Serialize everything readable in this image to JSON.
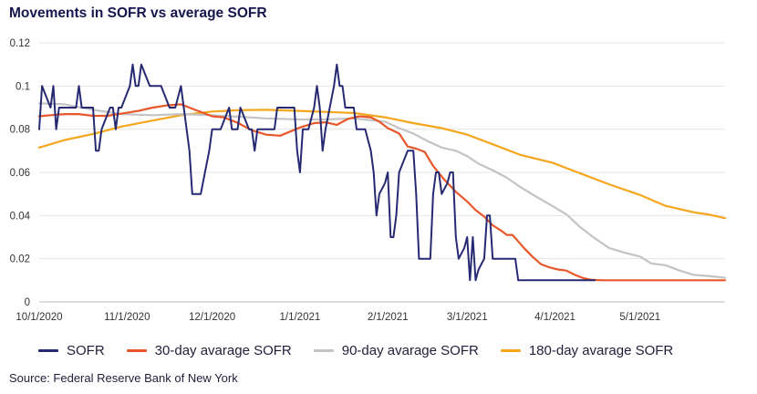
{
  "title": "Movements in SOFR vs average SOFR",
  "source": "Source: Federal Reserve Bank of New York",
  "chart_data": {
    "type": "line",
    "title": "Movements in SOFR vs average SOFR",
    "xlabel": "",
    "ylabel": "",
    "x_range": [
      "2020-10-01",
      "2021-05-31"
    ],
    "ylim": [
      0,
      0.12
    ],
    "y_ticks": [
      0,
      0.02,
      0.04,
      0.06,
      0.08,
      0.1,
      0.12
    ],
    "y_tick_labels": [
      "0",
      "0.02",
      "0.04",
      "0.06",
      "0.08",
      "0.1",
      "0.12"
    ],
    "x_ticks": [
      "2020-10-01",
      "2020-11-01",
      "2020-12-01",
      "2021-01-01",
      "2021-02-01",
      "2021-03-01",
      "2021-04-01",
      "2021-05-01"
    ],
    "x_tick_labels": [
      "10/1/2020",
      "11/1/2020",
      "12/1/2020",
      "1/1/2021",
      "2/1/2021",
      "3/1/2021",
      "4/1/2021",
      "5/1/2021"
    ],
    "grid": "horizontal",
    "legend_position": "bottom",
    "series": [
      {
        "name": "SOFR",
        "color": "#262a72",
        "points": [
          [
            "2020-10-01",
            0.08
          ],
          [
            "2020-10-02",
            0.1
          ],
          [
            "2020-10-05",
            0.09
          ],
          [
            "2020-10-06",
            0.1
          ],
          [
            "2020-10-07",
            0.08
          ],
          [
            "2020-10-08",
            0.09
          ],
          [
            "2020-10-14",
            0.09
          ],
          [
            "2020-10-15",
            0.1
          ],
          [
            "2020-10-16",
            0.09
          ],
          [
            "2020-10-20",
            0.09
          ],
          [
            "2020-10-21",
            0.07
          ],
          [
            "2020-10-22",
            0.07
          ],
          [
            "2020-10-23",
            0.08
          ],
          [
            "2020-10-26",
            0.09
          ],
          [
            "2020-10-27",
            0.09
          ],
          [
            "2020-10-28",
            0.08
          ],
          [
            "2020-10-29",
            0.09
          ],
          [
            "2020-10-30",
            0.09
          ],
          [
            "2020-11-02",
            0.1
          ],
          [
            "2020-11-03",
            0.11
          ],
          [
            "2020-11-04",
            0.1
          ],
          [
            "2020-11-05",
            0.1
          ],
          [
            "2020-11-06",
            0.11
          ],
          [
            "2020-11-09",
            0.1
          ],
          [
            "2020-11-13",
            0.1
          ],
          [
            "2020-11-16",
            0.09
          ],
          [
            "2020-11-18",
            0.09
          ],
          [
            "2020-11-20",
            0.1
          ],
          [
            "2020-11-23",
            0.07
          ],
          [
            "2020-11-24",
            0.05
          ],
          [
            "2020-11-27",
            0.05
          ],
          [
            "2020-11-30",
            0.07
          ],
          [
            "2020-12-01",
            0.08
          ],
          [
            "2020-12-04",
            0.08
          ],
          [
            "2020-12-07",
            0.09
          ],
          [
            "2020-12-08",
            0.08
          ],
          [
            "2020-12-10",
            0.08
          ],
          [
            "2020-12-11",
            0.09
          ],
          [
            "2020-12-14",
            0.08
          ],
          [
            "2020-12-15",
            0.08
          ],
          [
            "2020-12-16",
            0.07
          ],
          [
            "2020-12-17",
            0.08
          ],
          [
            "2020-12-23",
            0.08
          ],
          [
            "2020-12-24",
            0.09
          ],
          [
            "2020-12-30",
            0.09
          ],
          [
            "2020-12-31",
            0.07
          ],
          [
            "2021-01-01",
            0.06
          ],
          [
            "2021-01-02",
            0.08
          ],
          [
            "2021-01-04",
            0.08
          ],
          [
            "2021-01-06",
            0.09
          ],
          [
            "2021-01-07",
            0.1
          ],
          [
            "2021-01-08",
            0.09
          ],
          [
            "2021-01-09",
            0.07
          ],
          [
            "2021-01-10",
            0.08
          ],
          [
            "2021-01-13",
            0.1
          ],
          [
            "2021-01-14",
            0.11
          ],
          [
            "2021-01-15",
            0.1
          ],
          [
            "2021-01-16",
            0.1
          ],
          [
            "2021-01-17",
            0.09
          ],
          [
            "2021-01-19",
            0.09
          ],
          [
            "2021-01-20",
            0.09
          ],
          [
            "2021-01-21",
            0.08
          ],
          [
            "2021-01-24",
            0.08
          ],
          [
            "2021-01-26",
            0.07
          ],
          [
            "2021-01-27",
            0.06
          ],
          [
            "2021-01-28",
            0.04
          ],
          [
            "2021-01-29",
            0.05
          ],
          [
            "2021-01-31",
            0.055
          ],
          [
            "2021-02-01",
            0.06
          ],
          [
            "2021-02-02",
            0.03
          ],
          [
            "2021-02-03",
            0.03
          ],
          [
            "2021-02-04",
            0.04
          ],
          [
            "2021-02-05",
            0.06
          ],
          [
            "2021-02-08",
            0.07
          ],
          [
            "2021-02-10",
            0.07
          ],
          [
            "2021-02-11",
            0.05
          ],
          [
            "2021-02-12",
            0.02
          ],
          [
            "2021-02-16",
            0.02
          ],
          [
            "2021-02-17",
            0.05
          ],
          [
            "2021-02-18",
            0.06
          ],
          [
            "2021-02-19",
            0.06
          ],
          [
            "2021-02-20",
            0.05
          ],
          [
            "2021-02-22",
            0.055
          ],
          [
            "2021-02-23",
            0.06
          ],
          [
            "2021-02-24",
            0.06
          ],
          [
            "2021-02-25",
            0.03
          ],
          [
            "2021-02-26",
            0.02
          ],
          [
            "2021-02-28",
            0.025
          ],
          [
            "2021-03-01",
            0.03
          ],
          [
            "2021-03-02",
            0.01
          ],
          [
            "2021-03-03",
            0.03
          ],
          [
            "2021-03-04",
            0.01
          ],
          [
            "2021-03-05",
            0.015
          ],
          [
            "2021-03-07",
            0.02
          ],
          [
            "2021-03-08",
            0.04
          ],
          [
            "2021-03-09",
            0.04
          ],
          [
            "2021-03-10",
            0.02
          ],
          [
            "2021-03-18",
            0.02
          ],
          [
            "2021-03-19",
            0.01
          ],
          [
            "2021-04-15",
            0.01
          ]
        ]
      },
      {
        "name": "30-day avarage SOFR",
        "color": "#e8572a",
        "points": [
          [
            "2020-10-01",
            0.086
          ],
          [
            "2020-10-05",
            0.0865
          ],
          [
            "2020-10-10",
            0.087
          ],
          [
            "2020-10-15",
            0.087
          ],
          [
            "2020-10-20",
            0.0862
          ],
          [
            "2020-10-25",
            0.0862
          ],
          [
            "2020-10-30",
            0.0872
          ],
          [
            "2020-11-05",
            0.0885
          ],
          [
            "2020-11-10",
            0.09
          ],
          [
            "2020-11-15",
            0.091
          ],
          [
            "2020-11-20",
            0.0915
          ],
          [
            "2020-11-25",
            0.089
          ],
          [
            "2020-12-01",
            0.086
          ],
          [
            "2020-12-05",
            0.0855
          ],
          [
            "2020-12-10",
            0.083
          ],
          [
            "2020-12-15",
            0.0795
          ],
          [
            "2020-12-20",
            0.0775
          ],
          [
            "2020-12-25",
            0.077
          ],
          [
            "2021-01-01",
            0.0808
          ],
          [
            "2021-01-06",
            0.0828
          ],
          [
            "2021-01-10",
            0.0832
          ],
          [
            "2021-01-14",
            0.082
          ],
          [
            "2021-01-18",
            0.0848
          ],
          [
            "2021-01-22",
            0.086
          ],
          [
            "2021-01-26",
            0.0855
          ],
          [
            "2021-01-29",
            0.0835
          ],
          [
            "2021-02-01",
            0.0805
          ],
          [
            "2021-02-05",
            0.078
          ],
          [
            "2021-02-08",
            0.072
          ],
          [
            "2021-02-11",
            0.071
          ],
          [
            "2021-02-14",
            0.0695
          ],
          [
            "2021-02-17",
            0.063
          ],
          [
            "2021-02-21",
            0.0565
          ],
          [
            "2021-02-25",
            0.051
          ],
          [
            "2021-03-01",
            0.0465
          ],
          [
            "2021-03-04",
            0.0425
          ],
          [
            "2021-03-07",
            0.0395
          ],
          [
            "2021-03-10",
            0.0355
          ],
          [
            "2021-03-13",
            0.033
          ],
          [
            "2021-03-15",
            0.031
          ],
          [
            "2021-03-17",
            0.031
          ],
          [
            "2021-03-19",
            0.028
          ],
          [
            "2021-03-21",
            0.025
          ],
          [
            "2021-03-24",
            0.021
          ],
          [
            "2021-03-27",
            0.0175
          ],
          [
            "2021-03-30",
            0.016
          ],
          [
            "2021-04-02",
            0.015
          ],
          [
            "2021-04-05",
            0.0145
          ],
          [
            "2021-04-08",
            0.0125
          ],
          [
            "2021-04-11",
            0.011
          ],
          [
            "2021-04-14",
            0.0102
          ],
          [
            "2021-04-18",
            0.01
          ],
          [
            "2021-05-31",
            0.01
          ]
        ]
      },
      {
        "name": "90-day avarage SOFR",
        "color": "#c4c4c4",
        "points": [
          [
            "2020-10-01",
            0.092
          ],
          [
            "2020-10-10",
            0.0915
          ],
          [
            "2020-10-20",
            0.089
          ],
          [
            "2020-10-30",
            0.087
          ],
          [
            "2020-11-10",
            0.0865
          ],
          [
            "2020-11-20",
            0.087
          ],
          [
            "2020-12-01",
            0.0865
          ],
          [
            "2020-12-10",
            0.0858
          ],
          [
            "2020-12-20",
            0.085
          ],
          [
            "2021-01-01",
            0.0845
          ],
          [
            "2021-01-10",
            0.0845
          ],
          [
            "2021-01-20",
            0.085
          ],
          [
            "2021-01-31",
            0.0835
          ],
          [
            "2021-02-05",
            0.0805
          ],
          [
            "2021-02-10",
            0.078
          ],
          [
            "2021-02-15",
            0.0745
          ],
          [
            "2021-02-20",
            0.0715
          ],
          [
            "2021-02-25",
            0.07
          ],
          [
            "2021-03-01",
            0.0675
          ],
          [
            "2021-03-05",
            0.064
          ],
          [
            "2021-03-10",
            0.061
          ],
          [
            "2021-03-15",
            0.0575
          ],
          [
            "2021-03-20",
            0.053
          ],
          [
            "2021-03-25",
            0.049
          ],
          [
            "2021-03-31",
            0.0445
          ],
          [
            "2021-04-05",
            0.0405
          ],
          [
            "2021-04-10",
            0.0345
          ],
          [
            "2021-04-15",
            0.0295
          ],
          [
            "2021-04-20",
            0.025
          ],
          [
            "2021-04-25",
            0.023
          ],
          [
            "2021-05-01",
            0.021
          ],
          [
            "2021-05-05",
            0.0178
          ],
          [
            "2021-05-10",
            0.017
          ],
          [
            "2021-05-15",
            0.0145
          ],
          [
            "2021-05-20",
            0.0125
          ],
          [
            "2021-05-25",
            0.012
          ],
          [
            "2021-05-31",
            0.0112
          ]
        ]
      },
      {
        "name": "180-day avarage SOFR",
        "color": "#f5a61c",
        "points": [
          [
            "2020-10-01",
            0.0715
          ],
          [
            "2020-10-10",
            0.075
          ],
          [
            "2020-10-20",
            0.0778
          ],
          [
            "2020-10-30",
            0.0812
          ],
          [
            "2020-11-10",
            0.084
          ],
          [
            "2020-11-20",
            0.0865
          ],
          [
            "2020-12-01",
            0.0882
          ],
          [
            "2020-12-10",
            0.0888
          ],
          [
            "2020-12-20",
            0.089
          ],
          [
            "2021-01-01",
            0.0885
          ],
          [
            "2021-01-10",
            0.088
          ],
          [
            "2021-01-20",
            0.0875
          ],
          [
            "2021-01-31",
            0.0855
          ],
          [
            "2021-02-10",
            0.0828
          ],
          [
            "2021-02-20",
            0.0805
          ],
          [
            "2021-03-01",
            0.0775
          ],
          [
            "2021-03-10",
            0.073
          ],
          [
            "2021-03-20",
            0.068
          ],
          [
            "2021-03-31",
            0.0645
          ],
          [
            "2021-04-10",
            0.0595
          ],
          [
            "2021-04-20",
            0.0545
          ],
          [
            "2021-05-01",
            0.0495
          ],
          [
            "2021-05-10",
            0.0445
          ],
          [
            "2021-05-20",
            0.0415
          ],
          [
            "2021-05-25",
            0.0405
          ],
          [
            "2021-05-31",
            0.0388
          ]
        ]
      }
    ]
  }
}
